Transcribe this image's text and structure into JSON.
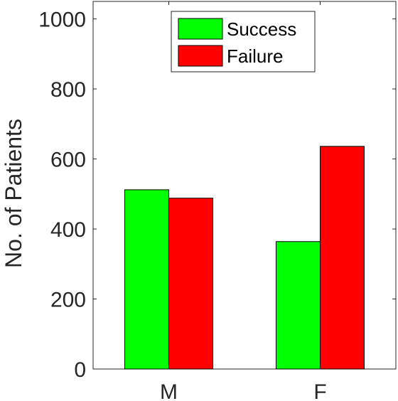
{
  "chart_data": {
    "type": "bar",
    "title": "",
    "xlabel": "",
    "ylabel": "No. of Patients",
    "categories": [
      "M",
      "F"
    ],
    "series": [
      {
        "name": "Success",
        "values": [
          512,
          364
        ],
        "color": "#00ff00"
      },
      {
        "name": "Failure",
        "values": [
          488,
          636
        ],
        "color": "#ff0000"
      }
    ],
    "ylim": [
      0,
      1050
    ],
    "yticks": [
      0,
      200,
      400,
      600,
      800,
      1000
    ],
    "grid": false,
    "legend_position": "top-right"
  }
}
